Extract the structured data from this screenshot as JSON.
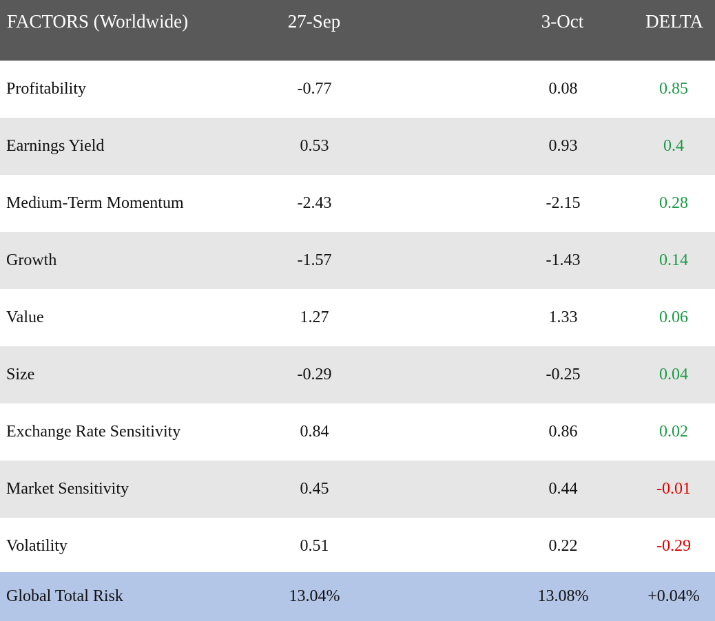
{
  "header": {
    "factor_label": "FACTORS (Worldwide)",
    "date1": "27-Sep",
    "date2": "3-Oct",
    "delta": "DELTA"
  },
  "colors": {
    "header_bg": "#595959",
    "stripe_bg": "#e6e6e6",
    "total_bg": "#b4c6e7",
    "positive": "#1a9a45",
    "negative": "#e00000"
  },
  "rows": [
    {
      "factor": "Profitability",
      "v1": "-0.77",
      "v2": "0.08",
      "delta": "0.85"
    },
    {
      "factor": "Earnings Yield",
      "v1": "0.53",
      "v2": "0.93",
      "delta": "0.4"
    },
    {
      "factor": "Medium-Term Momentum",
      "v1": "-2.43",
      "v2": "-2.15",
      "delta": "0.28"
    },
    {
      "factor": "Growth",
      "v1": "-1.57",
      "v2": "-1.43",
      "delta": "0.14"
    },
    {
      "factor": "Value",
      "v1": "1.27",
      "v2": "1.33",
      "delta": "0.06"
    },
    {
      "factor": "Size",
      "v1": "-0.29",
      "v2": "-0.25",
      "delta": "0.04"
    },
    {
      "factor": "Exchange Rate Sensitivity",
      "v1": "0.84",
      "v2": "0.86",
      "delta": "0.02"
    },
    {
      "factor": "Market Sensitivity",
      "v1": "0.45",
      "v2": "0.44",
      "delta": "-0.01"
    },
    {
      "factor": "Volatility",
      "v1": "0.51",
      "v2": "0.22",
      "delta": "-0.29"
    }
  ],
  "total": {
    "factor": "Global Total Risk",
    "v1": "13.04%",
    "v2": "13.08%",
    "delta": "+0.04%"
  }
}
